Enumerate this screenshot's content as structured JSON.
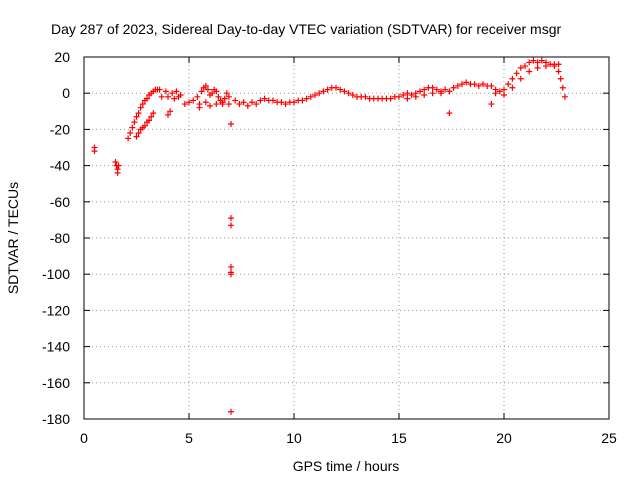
{
  "chart_data": {
    "type": "scatter",
    "title": "Day 287 of 2023, Sidereal Day-to-day VTEC variation (SDTVAR) for receiver msgr",
    "xlabel": "GPS time / hours",
    "ylabel": "SDTVAR / TECUs",
    "xlim": [
      0,
      25
    ],
    "ylim": [
      -180,
      20
    ],
    "xticks": [
      0,
      5,
      10,
      15,
      20,
      25
    ],
    "yticks": [
      20,
      0,
      -20,
      -40,
      -60,
      -80,
      -100,
      -120,
      -140,
      -160,
      -180
    ],
    "grid": true,
    "marker": "+",
    "color": "#ff0000",
    "series": [
      {
        "name": "SDTVAR",
        "points": [
          [
            0.5,
            -30
          ],
          [
            0.5,
            -32
          ],
          [
            1.5,
            -38
          ],
          [
            1.55,
            -40
          ],
          [
            1.6,
            -42
          ],
          [
            1.6,
            -44
          ],
          [
            1.65,
            -40
          ],
          [
            2.1,
            -25
          ],
          [
            2.2,
            -22
          ],
          [
            2.3,
            -19
          ],
          [
            2.4,
            -16
          ],
          [
            2.5,
            -13
          ],
          [
            2.6,
            -11
          ],
          [
            2.7,
            -8
          ],
          [
            2.8,
            -6
          ],
          [
            2.9,
            -4
          ],
          [
            3.0,
            -3
          ],
          [
            3.1,
            -1
          ],
          [
            3.2,
            0
          ],
          [
            3.3,
            1
          ],
          [
            3.4,
            2
          ],
          [
            3.5,
            2
          ],
          [
            2.5,
            -24
          ],
          [
            2.6,
            -22
          ],
          [
            2.7,
            -20
          ],
          [
            2.8,
            -19
          ],
          [
            2.9,
            -18
          ],
          [
            3.0,
            -16
          ],
          [
            3.1,
            -15
          ],
          [
            3.2,
            -13
          ],
          [
            3.3,
            -11
          ],
          [
            3.6,
            2
          ],
          [
            3.7,
            -2
          ],
          [
            3.9,
            1
          ],
          [
            4.0,
            -2
          ],
          [
            4.0,
            -12
          ],
          [
            4.1,
            -10
          ],
          [
            4.2,
            0
          ],
          [
            4.3,
            -3
          ],
          [
            4.4,
            1
          ],
          [
            4.5,
            -2
          ],
          [
            4.6,
            -1
          ],
          [
            4.8,
            -6
          ],
          [
            5.0,
            -5
          ],
          [
            5.2,
            -4
          ],
          [
            5.4,
            -2
          ],
          [
            5.5,
            -6
          ],
          [
            5.6,
            1
          ],
          [
            5.7,
            3
          ],
          [
            5.8,
            4
          ],
          [
            5.9,
            2
          ],
          [
            6.0,
            -1
          ],
          [
            6.1,
            0
          ],
          [
            6.2,
            2
          ],
          [
            6.3,
            1
          ],
          [
            6.4,
            -2
          ],
          [
            6.5,
            -4
          ],
          [
            6.6,
            -6
          ],
          [
            6.7,
            -3
          ],
          [
            6.8,
            0
          ],
          [
            6.9,
            -2
          ],
          [
            5.5,
            -8
          ],
          [
            5.8,
            -5
          ],
          [
            6.0,
            -7
          ],
          [
            6.3,
            -6
          ],
          [
            6.6,
            -5
          ],
          [
            6.9,
            -6
          ],
          [
            7.0,
            -17
          ],
          [
            7.0,
            -69
          ],
          [
            7.0,
            -73
          ],
          [
            7.0,
            -96
          ],
          [
            7.0,
            -99
          ],
          [
            7.0,
            -100
          ],
          [
            7.0,
            -176
          ],
          [
            7.2,
            -4
          ],
          [
            7.4,
            -6
          ],
          [
            7.6,
            -5
          ],
          [
            7.8,
            -7
          ],
          [
            8.0,
            -5
          ],
          [
            8.2,
            -6
          ],
          [
            8.4,
            -4
          ],
          [
            8.6,
            -3
          ],
          [
            8.8,
            -4
          ],
          [
            9.0,
            -4
          ],
          [
            9.2,
            -5
          ],
          [
            9.4,
            -5
          ],
          [
            9.6,
            -6
          ],
          [
            9.8,
            -5
          ],
          [
            10.0,
            -5
          ],
          [
            10.2,
            -4
          ],
          [
            10.4,
            -4
          ],
          [
            10.6,
            -3
          ],
          [
            10.8,
            -2
          ],
          [
            11.0,
            -1
          ],
          [
            11.2,
            0
          ],
          [
            11.4,
            1
          ],
          [
            11.6,
            2
          ],
          [
            11.8,
            3
          ],
          [
            12.0,
            3
          ],
          [
            12.2,
            2
          ],
          [
            12.4,
            1
          ],
          [
            12.6,
            0
          ],
          [
            12.8,
            -1
          ],
          [
            13.0,
            -2
          ],
          [
            13.2,
            -2
          ],
          [
            13.4,
            -2
          ],
          [
            13.6,
            -3
          ],
          [
            13.8,
            -3
          ],
          [
            14.0,
            -3
          ],
          [
            14.2,
            -3
          ],
          [
            14.4,
            -3
          ],
          [
            14.6,
            -3
          ],
          [
            14.8,
            -2
          ],
          [
            15.0,
            -2
          ],
          [
            15.2,
            -1
          ],
          [
            15.4,
            0
          ],
          [
            15.6,
            -1
          ],
          [
            15.8,
            0
          ],
          [
            16.0,
            1
          ],
          [
            16.2,
            2
          ],
          [
            16.4,
            3
          ],
          [
            16.6,
            3
          ],
          [
            16.8,
            2
          ],
          [
            17.0,
            1
          ],
          [
            15.4,
            -3
          ],
          [
            15.8,
            -2
          ],
          [
            16.2,
            -1
          ],
          [
            16.6,
            0
          ],
          [
            17.0,
            0
          ],
          [
            17.2,
            2
          ],
          [
            17.4,
            1
          ],
          [
            17.6,
            3
          ],
          [
            17.8,
            4
          ],
          [
            18.0,
            5
          ],
          [
            18.2,
            6
          ],
          [
            18.4,
            5
          ],
          [
            18.6,
            5
          ],
          [
            18.8,
            4
          ],
          [
            19.0,
            5
          ],
          [
            19.2,
            4
          ],
          [
            19.4,
            4
          ],
          [
            19.6,
            2
          ],
          [
            19.8,
            1
          ],
          [
            20.0,
            2
          ],
          [
            20.2,
            5
          ],
          [
            20.4,
            8
          ],
          [
            20.6,
            11
          ],
          [
            20.8,
            14
          ],
          [
            21.0,
            15
          ],
          [
            21.2,
            17
          ],
          [
            21.4,
            18
          ],
          [
            21.6,
            17
          ],
          [
            21.8,
            18
          ],
          [
            22.0,
            17
          ],
          [
            22.2,
            16
          ],
          [
            22.4,
            15
          ],
          [
            22.6,
            12
          ],
          [
            22.7,
            8
          ],
          [
            22.8,
            3
          ],
          [
            22.9,
            -2
          ],
          [
            19.6,
            0
          ],
          [
            20.0,
            -1
          ],
          [
            20.4,
            3
          ],
          [
            20.8,
            8
          ],
          [
            21.2,
            12
          ],
          [
            21.6,
            14
          ],
          [
            22.0,
            15
          ],
          [
            22.4,
            16
          ],
          [
            22.6,
            16
          ],
          [
            17.4,
            -11
          ],
          [
            19.4,
            -6
          ]
        ]
      }
    ]
  }
}
